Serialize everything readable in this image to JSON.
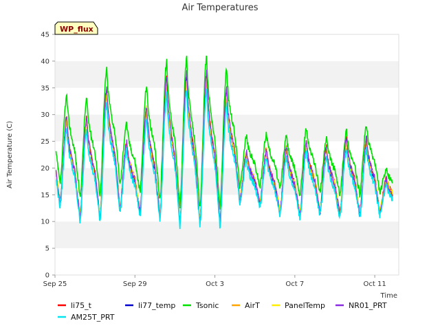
{
  "chart_data": {
    "type": "line",
    "title": "Air Temperatures",
    "xlabel": "Time",
    "ylabel": "Air Temperature (C)",
    "badge": "WP_flux",
    "ylim": [
      0,
      45
    ],
    "yticks": [
      0,
      5,
      10,
      15,
      20,
      25,
      30,
      35,
      40,
      45
    ],
    "xlim": [
      0,
      17.2
    ],
    "xtick_positions": [
      0,
      4,
      8,
      12,
      16
    ],
    "xtick_labels": [
      "Sep 25",
      "Sep 29",
      "Oct 3",
      "Oct 7",
      "Oct 11"
    ],
    "grid": "horizontal alternating bands",
    "legend_position": "bottom",
    "series": [
      {
        "name": "li75_t",
        "color": "#ff0000"
      },
      {
        "name": "li77_temp",
        "color": "#0000cc"
      },
      {
        "name": "Tsonic",
        "color": "#00e000"
      },
      {
        "name": "AirT",
        "color": "#ffa500"
      },
      {
        "name": "PanelTemp",
        "color": "#ffee00"
      },
      {
        "name": "NR01_PRT",
        "color": "#8a2be2"
      },
      {
        "name": "AM25T_PRT",
        "color": "#00e5ee"
      }
    ],
    "daily_cycle": {
      "day": [
        0,
        1,
        2,
        3,
        4,
        5,
        6,
        7,
        8,
        9,
        10,
        11,
        12,
        13,
        14,
        15,
        16
      ],
      "day_label": [
        "Sep 25",
        "Sep 26",
        "Sep 27",
        "Sep 28",
        "Sep 29",
        "Sep 30",
        "Oct 1",
        "Oct 2",
        "Oct 3",
        "Oct 4",
        "Oct 5",
        "Oct 6",
        "Oct 7",
        "Oct 8",
        "Oct 9",
        "Oct 10",
        "Oct 11"
      ],
      "min_air": [
        13.5,
        11.0,
        11.0,
        12.5,
        12.0,
        11.0,
        10.0,
        10.0,
        10.0,
        14.0,
        13.5,
        12.0,
        11.5,
        12.0,
        11.5,
        11.5,
        12.0
      ],
      "max_air": [
        29.5,
        29.5,
        35.0,
        25.0,
        31.5,
        37.0,
        37.5,
        37.5,
        34.5,
        23.0,
        23.5,
        24.0,
        25.0,
        24.0,
        25.5,
        25.5,
        18.0
      ],
      "min_tsonic": [
        17.0,
        14.5,
        15.0,
        17.0,
        15.5,
        14.0,
        13.0,
        12.5,
        12.5,
        16.5,
        16.5,
        16.0,
        15.0,
        15.5,
        15.0,
        15.0,
        15.5
      ],
      "max_tsonic": [
        33.5,
        33.0,
        38.5,
        28.5,
        35.5,
        40.0,
        40.5,
        41.0,
        38.5,
        26.0,
        26.5,
        26.0,
        27.5,
        25.5,
        27.0,
        28.0,
        19.5
      ]
    }
  }
}
